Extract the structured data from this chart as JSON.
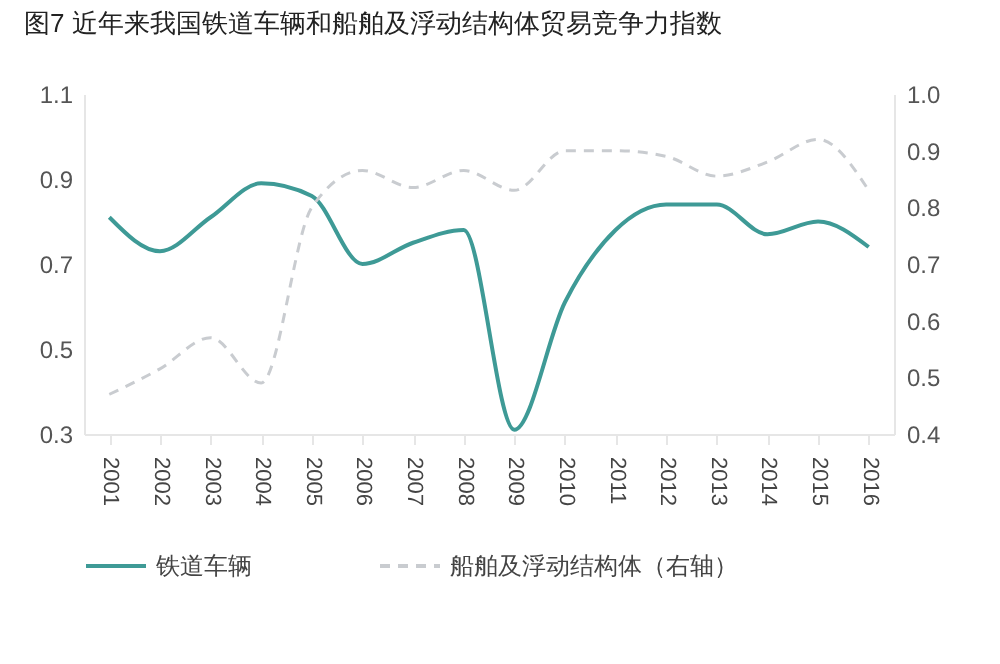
{
  "chart_data": {
    "type": "line",
    "title": "图7 近年来我国铁道车辆和船舶及浮动结构体贸易竞争力指数",
    "categories": [
      "2001",
      "2002",
      "2003",
      "2004",
      "2005",
      "2006",
      "2007",
      "2008",
      "2009",
      "2010",
      "2011",
      "2012",
      "2013",
      "2014",
      "2015",
      "2016"
    ],
    "series": [
      {
        "name": "铁道车辆",
        "color": "#3e9a96",
        "line_style": "solid",
        "values": [
          0.81,
          0.73,
          0.81,
          0.89,
          0.86,
          0.7,
          0.75,
          0.78,
          0.31,
          0.61,
          0.78,
          0.84,
          0.84,
          0.77,
          0.8,
          0.74
        ]
      },
      {
        "name": "船舶及浮动结构体（右轴）",
        "color": "#c9ccd0",
        "line_style": "dashed",
        "axis": "y2",
        "values": [
          0.47,
          0.515,
          0.57,
          0.49,
          0.8,
          0.865,
          0.835,
          0.865,
          0.83,
          0.9,
          0.9,
          0.89,
          0.855,
          0.88,
          0.92,
          0.83
        ]
      }
    ],
    "ylim": [
      0.3,
      1.1
    ],
    "yticks": [
      0.3,
      0.5,
      0.7,
      0.9,
      1.1
    ],
    "y2lim": [
      0.4,
      1.0
    ],
    "y2ticks": [
      0.4,
      0.5,
      0.6,
      0.7,
      0.8,
      0.9,
      {
        "value": 1,
        "label": "1.0"
      }
    ],
    "legend": "bottom"
  }
}
